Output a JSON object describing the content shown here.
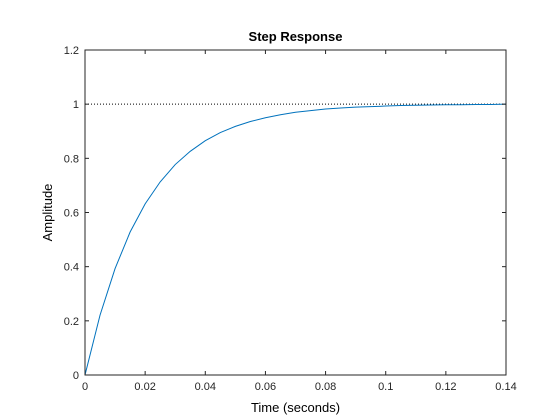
{
  "chart_data": {
    "type": "line",
    "title": "Step Response",
    "xlabel": "Time (seconds)",
    "ylabel": "Amplitude",
    "xlim": [
      0,
      0.14
    ],
    "ylim": [
      0,
      1.2
    ],
    "x_ticks": [
      0,
      0.02,
      0.04,
      0.06,
      0.08,
      0.1,
      0.12,
      0.14
    ],
    "x_tick_labels": [
      "0",
      "0.02",
      "0.04",
      "0.06",
      "0.08",
      "0.1",
      "0.12",
      "0.14"
    ],
    "y_ticks": [
      0,
      0.2,
      0.4,
      0.6,
      0.8,
      1,
      1.2
    ],
    "y_tick_labels": [
      "0",
      "0.2",
      "0.4",
      "0.6",
      "0.8",
      "1",
      "1.2"
    ],
    "grid": false,
    "series": [
      {
        "color": "#0072bd",
        "x": [
          0,
          0.005,
          0.01,
          0.015,
          0.02,
          0.025,
          0.03,
          0.035,
          0.04,
          0.045,
          0.05,
          0.055,
          0.06,
          0.065,
          0.07,
          0.075,
          0.08,
          0.085,
          0.09,
          0.095,
          0.1,
          0.105,
          0.11,
          0.115,
          0.12,
          0.125,
          0.13,
          0.135,
          0.14
        ],
        "y": [
          0,
          0.221,
          0.393,
          0.528,
          0.632,
          0.713,
          0.777,
          0.826,
          0.865,
          0.895,
          0.918,
          0.936,
          0.95,
          0.961,
          0.97,
          0.976,
          0.982,
          0.986,
          0.989,
          0.991,
          0.993,
          0.995,
          0.996,
          0.997,
          0.998,
          0.998,
          0.999,
          0.999,
          1.0
        ]
      }
    ],
    "reference_line": {
      "y": 1,
      "style": "dotted",
      "color": "#000000"
    }
  }
}
